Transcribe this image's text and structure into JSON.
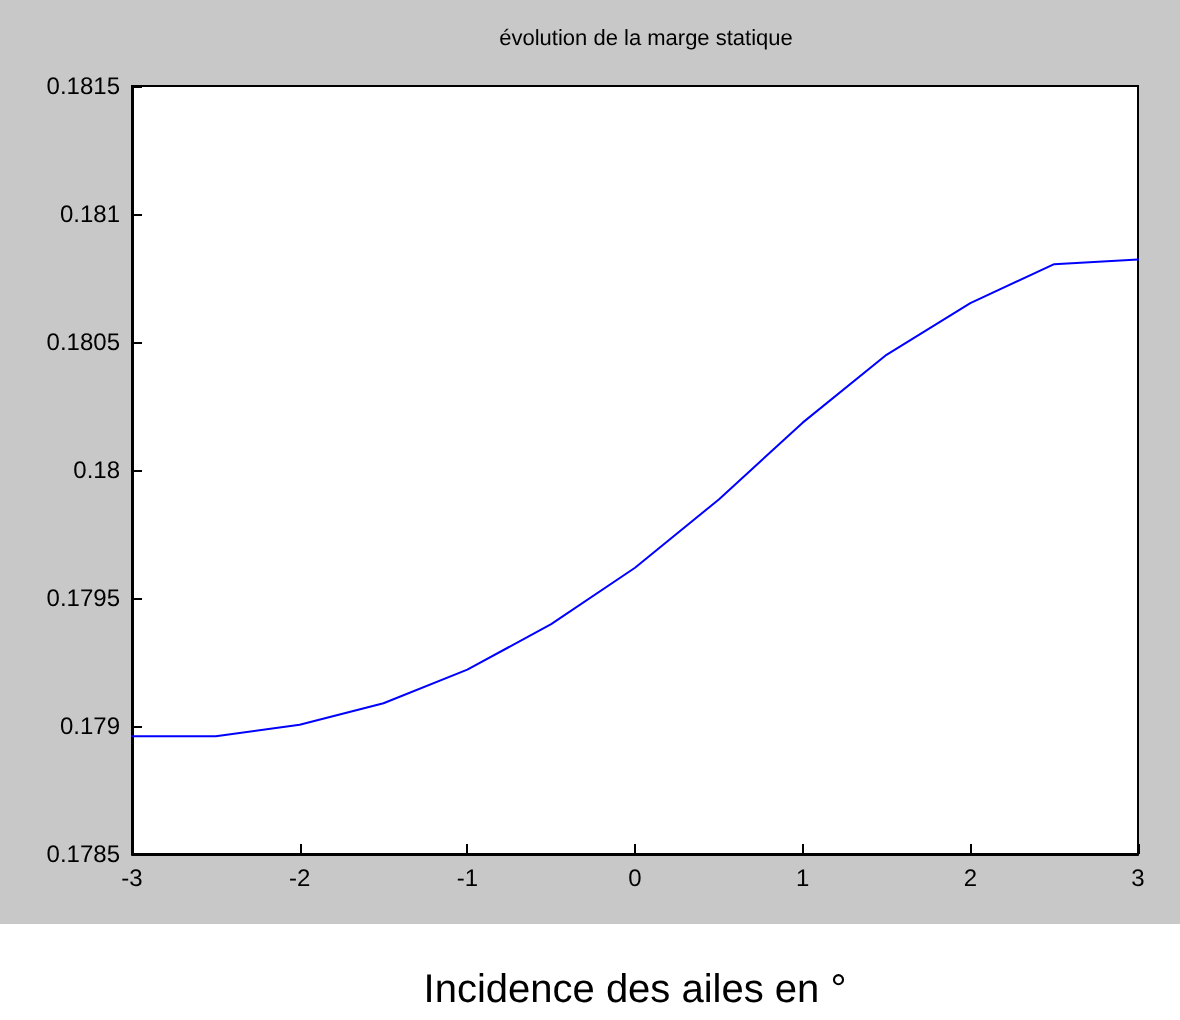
{
  "chart_data": {
    "type": "line",
    "title": "évolution de la marge statique",
    "xlabel": "Incidence des ailes en °",
    "x": [
      -3,
      -2.5,
      -2,
      -1.5,
      -1,
      -0.5,
      0,
      0.5,
      1,
      1.5,
      2,
      2.5,
      3
    ],
    "series": [
      {
        "color": "#0000ff",
        "values": [
          0.17896,
          0.17896,
          0.179005,
          0.179089,
          0.17922,
          0.179398,
          0.179618,
          0.179885,
          0.180185,
          0.18045,
          0.180652,
          0.180804,
          0.180822
        ]
      }
    ],
    "xlim": [
      -3,
      3
    ],
    "xticks": [
      -3,
      -2,
      -1,
      0,
      1,
      2,
      3
    ],
    "ylim": [
      0.1785,
      0.1815
    ],
    "yticks": [
      0.1785,
      0.179,
      0.1795,
      0.18,
      0.1805,
      0.181,
      0.1815
    ],
    "grid": false,
    "marker": "none",
    "line_style": "solid"
  }
}
